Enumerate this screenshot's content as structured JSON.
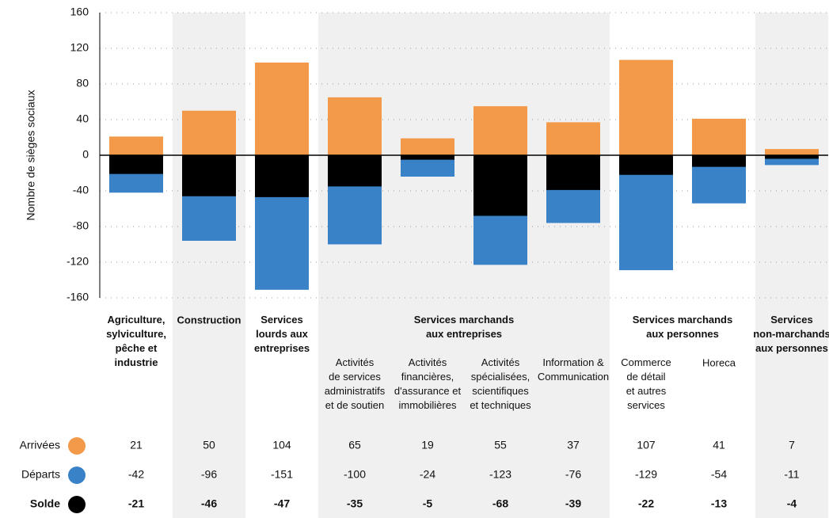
{
  "chart_data": {
    "type": "bar",
    "y_label": "Nombre de sièges sociaux",
    "ylim": [
      -160,
      160
    ],
    "yticks": [
      -160,
      -120,
      -80,
      -40,
      0,
      40,
      80,
      120,
      160
    ],
    "grid": true,
    "groups": [
      {
        "label": "Agriculture,\nsylviculture,\npêche et\nindustrie",
        "categories": [
          null
        ]
      },
      {
        "label": "Construction",
        "categories": [
          null
        ]
      },
      {
        "label": "Services\nlourds aux\nentreprises",
        "categories": [
          null
        ]
      },
      {
        "label": "Services marchands\naux entreprises",
        "categories": [
          "Activités\nde services\nadministratifs\net de soutien",
          "Activités\nfinancières,\nd'assurance et\nimmobilières",
          "Activités\nspécialisées,\nscientifiques\net techniques",
          "Information &\nCommunication"
        ]
      },
      {
        "label": "Services marchands\naux personnes",
        "categories": [
          "Commerce\nde détail\net autres\nservices",
          "Horeca"
        ]
      },
      {
        "label": "Services\nnon-marchands\naux personnes",
        "categories": [
          null
        ]
      }
    ],
    "series": [
      {
        "name": "Arrivées",
        "color": "#f39a4a",
        "values": [
          21,
          50,
          104,
          65,
          19,
          55,
          37,
          107,
          41,
          7
        ]
      },
      {
        "name": "Départs",
        "color": "#3a82c8",
        "values": [
          -42,
          -96,
          -151,
          -100,
          -24,
          -123,
          -76,
          -129,
          -54,
          -11
        ]
      },
      {
        "name": "Solde",
        "color": "#000000",
        "values": [
          -21,
          -46,
          -47,
          -35,
          -5,
          -68,
          -39,
          -22,
          -13,
          -4
        ]
      }
    ]
  }
}
